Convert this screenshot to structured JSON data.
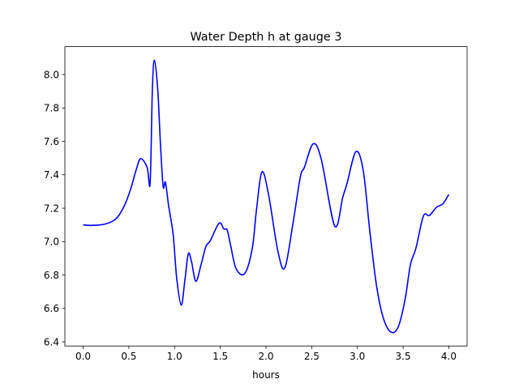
{
  "chart_data": {
    "type": "line",
    "title": "Water Depth h at gauge 3",
    "xlabel": "hours",
    "ylabel": "",
    "xlim": [
      -0.2,
      4.2
    ],
    "ylim": [
      6.375,
      8.167
    ],
    "grid": false,
    "x_ticks": [
      0.0,
      0.5,
      1.0,
      1.5,
      2.0,
      2.5,
      3.0,
      3.5,
      4.0
    ],
    "x_tick_labels": [
      "0.0",
      "0.5",
      "1.0",
      "1.5",
      "2.0",
      "2.5",
      "3.0",
      "3.5",
      "4.0"
    ],
    "y_ticks": [
      6.4,
      6.6,
      6.8,
      7.0,
      7.2,
      7.4,
      7.6,
      7.8,
      8.0
    ],
    "y_tick_labels": [
      "6.4",
      "6.6",
      "6.8",
      "7.0",
      "7.2",
      "7.4",
      "7.6",
      "7.8",
      "8.0"
    ],
    "series": [
      {
        "name": "h",
        "color": "#0000ff",
        "x": [
          0.0,
          0.09,
          0.24,
          0.36,
          0.446,
          0.52,
          0.58,
          0.63,
          0.7,
          0.733,
          0.757,
          0.78,
          0.816,
          0.845,
          0.875,
          0.9,
          0.934,
          0.985,
          1.023,
          1.073,
          1.112,
          1.15,
          1.186,
          1.233,
          1.29,
          1.342,
          1.39,
          1.487,
          1.54,
          1.576,
          1.614,
          1.673,
          1.768,
          1.85,
          1.895,
          1.955,
          2.028,
          2.13,
          2.206,
          2.294,
          2.376,
          2.42,
          2.516,
          2.605,
          2.752,
          2.84,
          2.886,
          2.983,
          3.063,
          3.137,
          3.21,
          3.285,
          3.367,
          3.447,
          3.521,
          3.58,
          3.64,
          3.722,
          3.787,
          3.867,
          3.935,
          4.0
        ],
        "y": [
          7.1,
          7.097,
          7.105,
          7.137,
          7.21,
          7.315,
          7.43,
          7.497,
          7.444,
          7.352,
          7.91,
          8.086,
          7.91,
          7.59,
          7.33,
          7.355,
          7.218,
          7.04,
          6.782,
          6.62,
          6.765,
          6.927,
          6.878,
          6.762,
          6.862,
          6.97,
          7.005,
          7.11,
          7.075,
          7.069,
          6.975,
          6.838,
          6.809,
          6.96,
          7.185,
          7.417,
          7.282,
          6.943,
          6.843,
          7.105,
          7.388,
          7.444,
          7.585,
          7.492,
          7.093,
          7.266,
          7.347,
          7.538,
          7.428,
          7.056,
          6.733,
          6.54,
          6.458,
          6.49,
          6.652,
          6.862,
          6.96,
          7.153,
          7.156,
          7.206,
          7.226,
          7.282
        ]
      }
    ]
  }
}
